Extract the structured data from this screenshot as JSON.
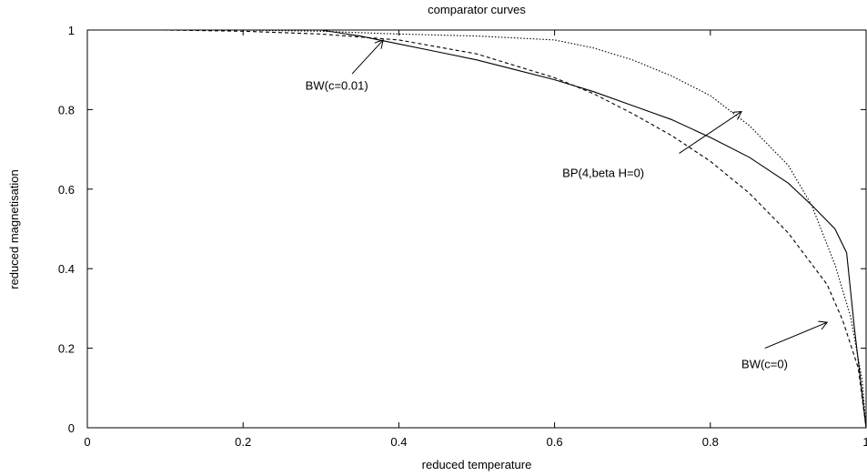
{
  "chart_data": {
    "type": "line",
    "title": "comparator curves",
    "xlabel": "reduced temperature",
    "ylabel": "reduced magnetisation",
    "xlim": [
      0,
      1
    ],
    "ylim": [
      0,
      1
    ],
    "x_ticks": [
      "0",
      "0.2",
      "0.4",
      "0.6",
      "0.8",
      "1"
    ],
    "y_ticks": [
      "0",
      "0.2",
      "0.4",
      "0.6",
      "0.8",
      "1"
    ],
    "grid": false,
    "legend": "none",
    "series": [
      {
        "style": "solid",
        "points": [
          [
            0.0,
            1.0
          ],
          [
            0.1,
            1.0
          ],
          [
            0.2,
            1.0
          ],
          [
            0.3,
            1.0
          ],
          [
            0.35,
            0.985
          ],
          [
            0.4,
            0.965
          ],
          [
            0.45,
            0.945
          ],
          [
            0.5,
            0.925
          ],
          [
            0.55,
            0.9
          ],
          [
            0.6,
            0.875
          ],
          [
            0.65,
            0.845
          ],
          [
            0.7,
            0.81
          ],
          [
            0.75,
            0.775
          ],
          [
            0.8,
            0.73
          ],
          [
            0.85,
            0.68
          ],
          [
            0.9,
            0.615
          ],
          [
            0.93,
            0.56
          ],
          [
            0.96,
            0.5
          ],
          [
            0.975,
            0.44
          ],
          [
            0.985,
            0.25
          ],
          [
            1.0,
            0.0
          ]
        ]
      },
      {
        "style": "dashed",
        "points": [
          [
            0.0,
            1.0
          ],
          [
            0.1,
            1.0
          ],
          [
            0.2,
            0.997
          ],
          [
            0.3,
            0.99
          ],
          [
            0.4,
            0.975
          ],
          [
            0.5,
            0.94
          ],
          [
            0.55,
            0.91
          ],
          [
            0.6,
            0.88
          ],
          [
            0.65,
            0.84
          ],
          [
            0.7,
            0.79
          ],
          [
            0.75,
            0.735
          ],
          [
            0.8,
            0.67
          ],
          [
            0.85,
            0.59
          ],
          [
            0.9,
            0.49
          ],
          [
            0.95,
            0.36
          ],
          [
            0.97,
            0.27
          ],
          [
            0.99,
            0.15
          ],
          [
            1.0,
            0.0
          ]
        ]
      },
      {
        "style": "dotted",
        "points": [
          [
            0.0,
            1.0
          ],
          [
            0.1,
            1.0
          ],
          [
            0.2,
            1.0
          ],
          [
            0.3,
            0.997
          ],
          [
            0.4,
            0.99
          ],
          [
            0.5,
            0.985
          ],
          [
            0.55,
            0.98
          ],
          [
            0.6,
            0.975
          ],
          [
            0.65,
            0.955
          ],
          [
            0.7,
            0.925
          ],
          [
            0.75,
            0.885
          ],
          [
            0.8,
            0.835
          ],
          [
            0.85,
            0.76
          ],
          [
            0.9,
            0.66
          ],
          [
            0.93,
            0.56
          ],
          [
            0.96,
            0.41
          ],
          [
            0.98,
            0.28
          ],
          [
            0.995,
            0.12
          ],
          [
            1.0,
            0.0
          ]
        ]
      }
    ],
    "annotations": [
      {
        "text": "BW(c=0.01)",
        "text_at": [
          0.28,
          0.85
        ],
        "arrow_from": [
          0.34,
          0.89
        ],
        "arrow_to": [
          0.38,
          0.975
        ]
      },
      {
        "text": "BP(4,beta H=0)",
        "text_at": [
          0.61,
          0.63
        ],
        "arrow_from": [
          0.76,
          0.69
        ],
        "arrow_to": [
          0.84,
          0.795
        ]
      },
      {
        "text": "BW(c=0)",
        "text_at": [
          0.84,
          0.15
        ],
        "arrow_from": [
          0.87,
          0.2
        ],
        "arrow_to": [
          0.95,
          0.265
        ]
      }
    ]
  }
}
